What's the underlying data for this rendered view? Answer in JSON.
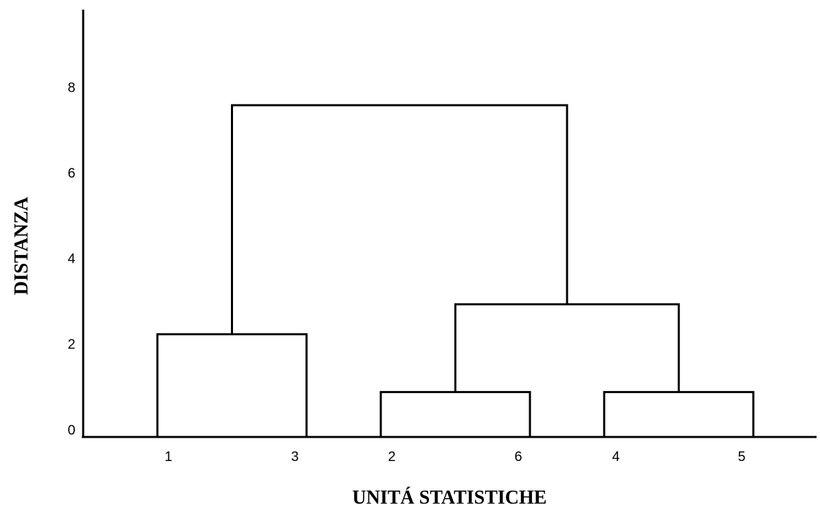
{
  "chart_data": {
    "type": "dendrogram",
    "title": "",
    "xlabel": "UNITÁ STATISTICHE",
    "ylabel": "DISTANZA",
    "ylim": [
      0,
      9.5
    ],
    "yticks": [
      "0",
      "2",
      "4",
      "6",
      "8"
    ],
    "grid": false,
    "leaves": [
      "1",
      "3",
      "2",
      "6",
      "4",
      "5"
    ],
    "merges": [
      {
        "left": "2",
        "right": "6",
        "height": 1.05
      },
      {
        "left": "4",
        "right": "5",
        "height": 1.05
      },
      {
        "left": "1",
        "right": "3",
        "height": 2.4
      },
      {
        "left": "2-6",
        "right": "4-5",
        "height": 3.1
      },
      {
        "left": "1-3",
        "right": "2-6-4-5",
        "height": 7.75
      }
    ],
    "line_color": "#000000"
  }
}
